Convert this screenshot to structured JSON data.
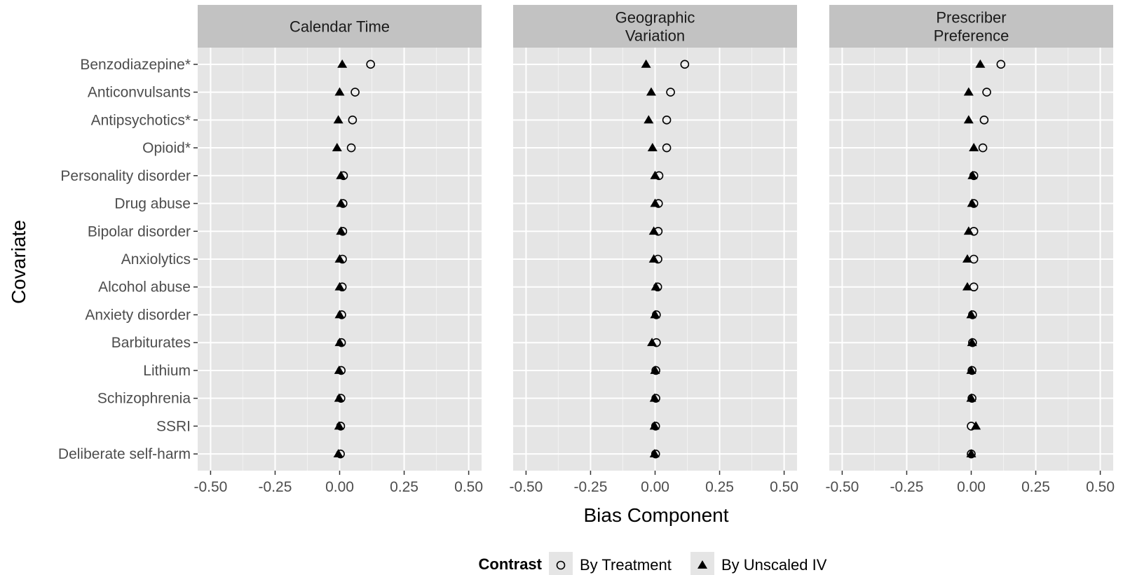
{
  "chart_data": {
    "type": "scatter",
    "xlabel": "Bias Component",
    "ylabel": "Covariate",
    "xlim": [
      -0.55,
      0.55
    ],
    "x_ticks": [
      -0.5,
      -0.25,
      0.0,
      0.25,
      0.5
    ],
    "x_tick_labels": [
      "-0.50",
      "-0.25",
      "0.00",
      "0.25",
      "0.50"
    ],
    "grid": true,
    "legend_position": "bottom",
    "legend": {
      "title": "Contrast",
      "entries": [
        {
          "name": "By Treatment",
          "shape": "open-circle"
        },
        {
          "name": "By Unscaled IV",
          "shape": "filled-triangle"
        }
      ]
    },
    "covariates": [
      "Benzodiazepine*",
      "Anticonvulsants",
      "Antipsychotics*",
      "Opioid*",
      "Personality disorder",
      "Drug abuse",
      "Bipolar disorder",
      "Anxiolytics",
      "Alcohol abuse",
      "Anxiety disorder",
      "Barbiturates",
      "Lithium",
      "Schizophrenia",
      "SSRI",
      "Deliberate self-harm"
    ],
    "panels": [
      {
        "title_lines": [
          "Calendar Time"
        ],
        "series": [
          {
            "name": "By Treatment",
            "values": [
              0.12,
              0.06,
              0.05,
              0.045,
              0.015,
              0.013,
              0.012,
              0.011,
              0.01,
              0.008,
              0.007,
              0.006,
              0.005,
              0.004,
              0.003
            ]
          },
          {
            "name": "By Unscaled IV",
            "values": [
              0.01,
              0.0,
              -0.005,
              -0.01,
              0.005,
              0.005,
              0.005,
              0.0,
              0.0,
              0.0,
              0.0,
              -0.002,
              -0.002,
              -0.002,
              -0.005
            ]
          }
        ]
      },
      {
        "title_lines": [
          "Geographic",
          "Variation"
        ],
        "series": [
          {
            "name": "By Treatment",
            "values": [
              0.115,
              0.06,
              0.045,
              0.045,
              0.015,
              0.013,
              0.012,
              0.011,
              0.01,
              0.005,
              0.005,
              0.003,
              0.003,
              0.002,
              0.002
            ]
          },
          {
            "name": "By Unscaled IV",
            "values": [
              -0.035,
              -0.015,
              -0.025,
              -0.01,
              0.0,
              0.0,
              -0.005,
              -0.005,
              0.003,
              0.0,
              -0.012,
              0.0,
              -0.002,
              -0.002,
              -0.002
            ]
          }
        ]
      },
      {
        "title_lines": [
          "Prescriber",
          "Preference"
        ],
        "series": [
          {
            "name": "By Treatment",
            "values": [
              0.115,
              0.06,
              0.05,
              0.045,
              0.01,
              0.01,
              0.01,
              0.01,
              0.01,
              0.005,
              0.005,
              0.003,
              0.003,
              0.0,
              0.0
            ]
          },
          {
            "name": "By Unscaled IV",
            "values": [
              0.035,
              -0.01,
              -0.01,
              0.01,
              0.005,
              0.003,
              -0.01,
              -0.015,
              -0.015,
              0.0,
              0.003,
              0.0,
              0.0,
              0.018,
              0.0
            ]
          }
        ]
      }
    ]
  }
}
